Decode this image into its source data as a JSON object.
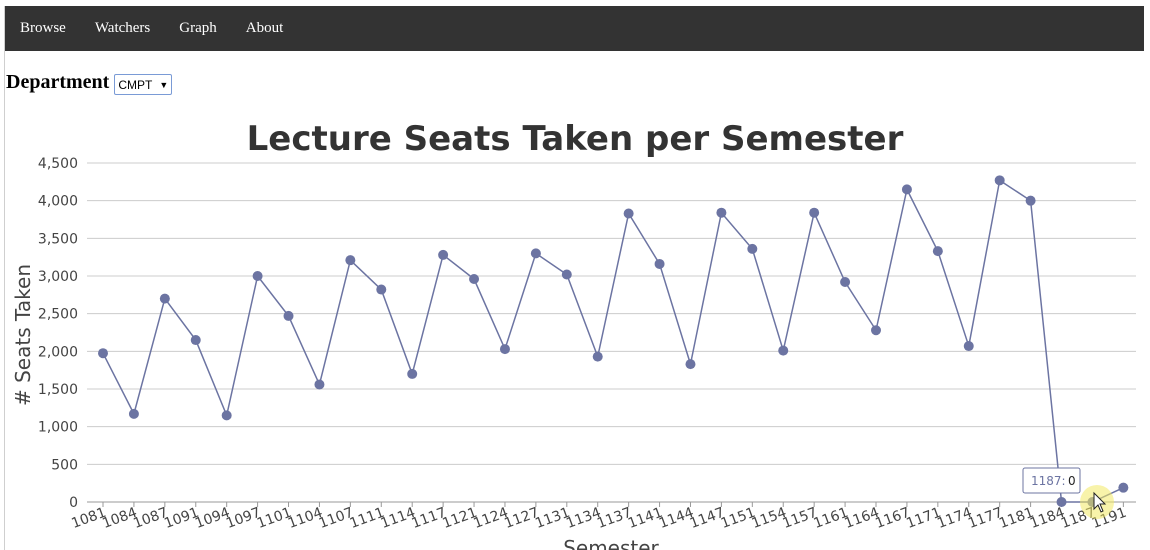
{
  "nav": {
    "items": [
      "Browse",
      "Watchers",
      "Graph",
      "About"
    ]
  },
  "department": {
    "label": "Department",
    "selected": "CMPT"
  },
  "tooltip": {
    "label": "1187:",
    "value": "0"
  },
  "colors": {
    "navbar": "#333333",
    "series": "#6c74a2",
    "tooltip_border": "#6c74a2"
  },
  "chart_data": {
    "type": "line",
    "title": "Lecture Seats Taken per Semester",
    "xlabel": "Semester",
    "ylabel": "# Seats Taken",
    "ylim": [
      0,
      4500
    ],
    "yticks": [
      "0",
      "500",
      "1,000",
      "1,500",
      "2,000",
      "2,500",
      "3,000",
      "3,500",
      "4,000",
      "4,500"
    ],
    "grid": true,
    "categories": [
      "1081",
      "1084",
      "1087",
      "1091",
      "1094",
      "1097",
      "1101",
      "1104",
      "1107",
      "1111",
      "1114",
      "1117",
      "1121",
      "1124",
      "1127",
      "1131",
      "1134",
      "1137",
      "1141",
      "1144",
      "1147",
      "1151",
      "1154",
      "1157",
      "1161",
      "1164",
      "1167",
      "1171",
      "1174",
      "1177",
      "1181",
      "1184",
      "1187",
      "1191"
    ],
    "series": [
      {
        "values": [
          1975,
          1170,
          2700,
          2150,
          1150,
          3000,
          2470,
          1560,
          3210,
          2820,
          1700,
          3280,
          2960,
          2030,
          3300,
          3020,
          1930,
          3830,
          3160,
          1830,
          3840,
          3360,
          2010,
          3840,
          2920,
          2280,
          4150,
          3330,
          2070,
          4270,
          4000,
          0,
          0,
          190
        ]
      }
    ]
  }
}
